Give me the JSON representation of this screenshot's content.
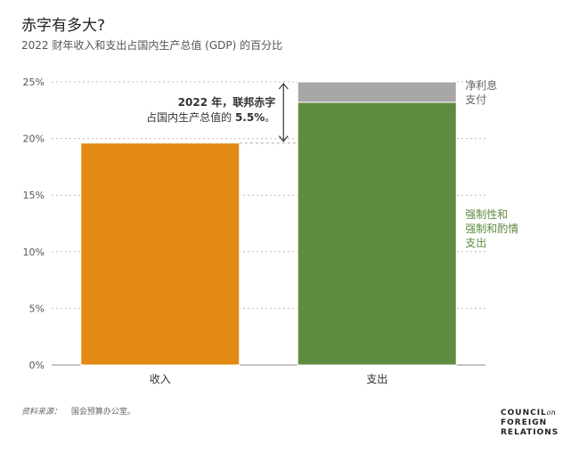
{
  "header": {
    "title": "赤字有多大?",
    "subtitle": "2022 财年收入和支出占国内生产总值 (GDP) 的百分比"
  },
  "chart_data": {
    "type": "bar",
    "stacked": true,
    "categories": [
      "收入",
      "支出"
    ],
    "series": [
      {
        "name": "收入",
        "values": [
          19.6,
          null
        ],
        "color": "#E38A14"
      },
      {
        "name": "强制性和强制和酌情支出",
        "values": [
          null,
          23.2
        ],
        "color": "#5E8B40"
      },
      {
        "name": "净利息支付",
        "values": [
          null,
          1.8
        ],
        "color": "#A7A7A7"
      }
    ],
    "ylim": [
      0,
      25
    ],
    "yticks": [
      0,
      5,
      10,
      15,
      20,
      25
    ],
    "ytick_labels": [
      "0%",
      "5%",
      "10%",
      "15%",
      "20%",
      "25%"
    ],
    "grid": true,
    "series_labels": {
      "interest": [
        "净利息",
        "支付"
      ],
      "spending": [
        "强制性和",
        "强制和酌情",
        "支出"
      ]
    },
    "annotation": {
      "line1": "2022 年，联邦赤字",
      "line2_prefix": "占国内生产总值的 ",
      "line2_value": "5.5%",
      "line2_suffix": "。"
    }
  },
  "footer": {
    "source_label": "资料来源：",
    "source_text": "国会预算办公室。",
    "logo_lines": [
      "COUNCIL",
      "FOREIGN",
      "RELATIONS"
    ],
    "logo_on": "on"
  }
}
